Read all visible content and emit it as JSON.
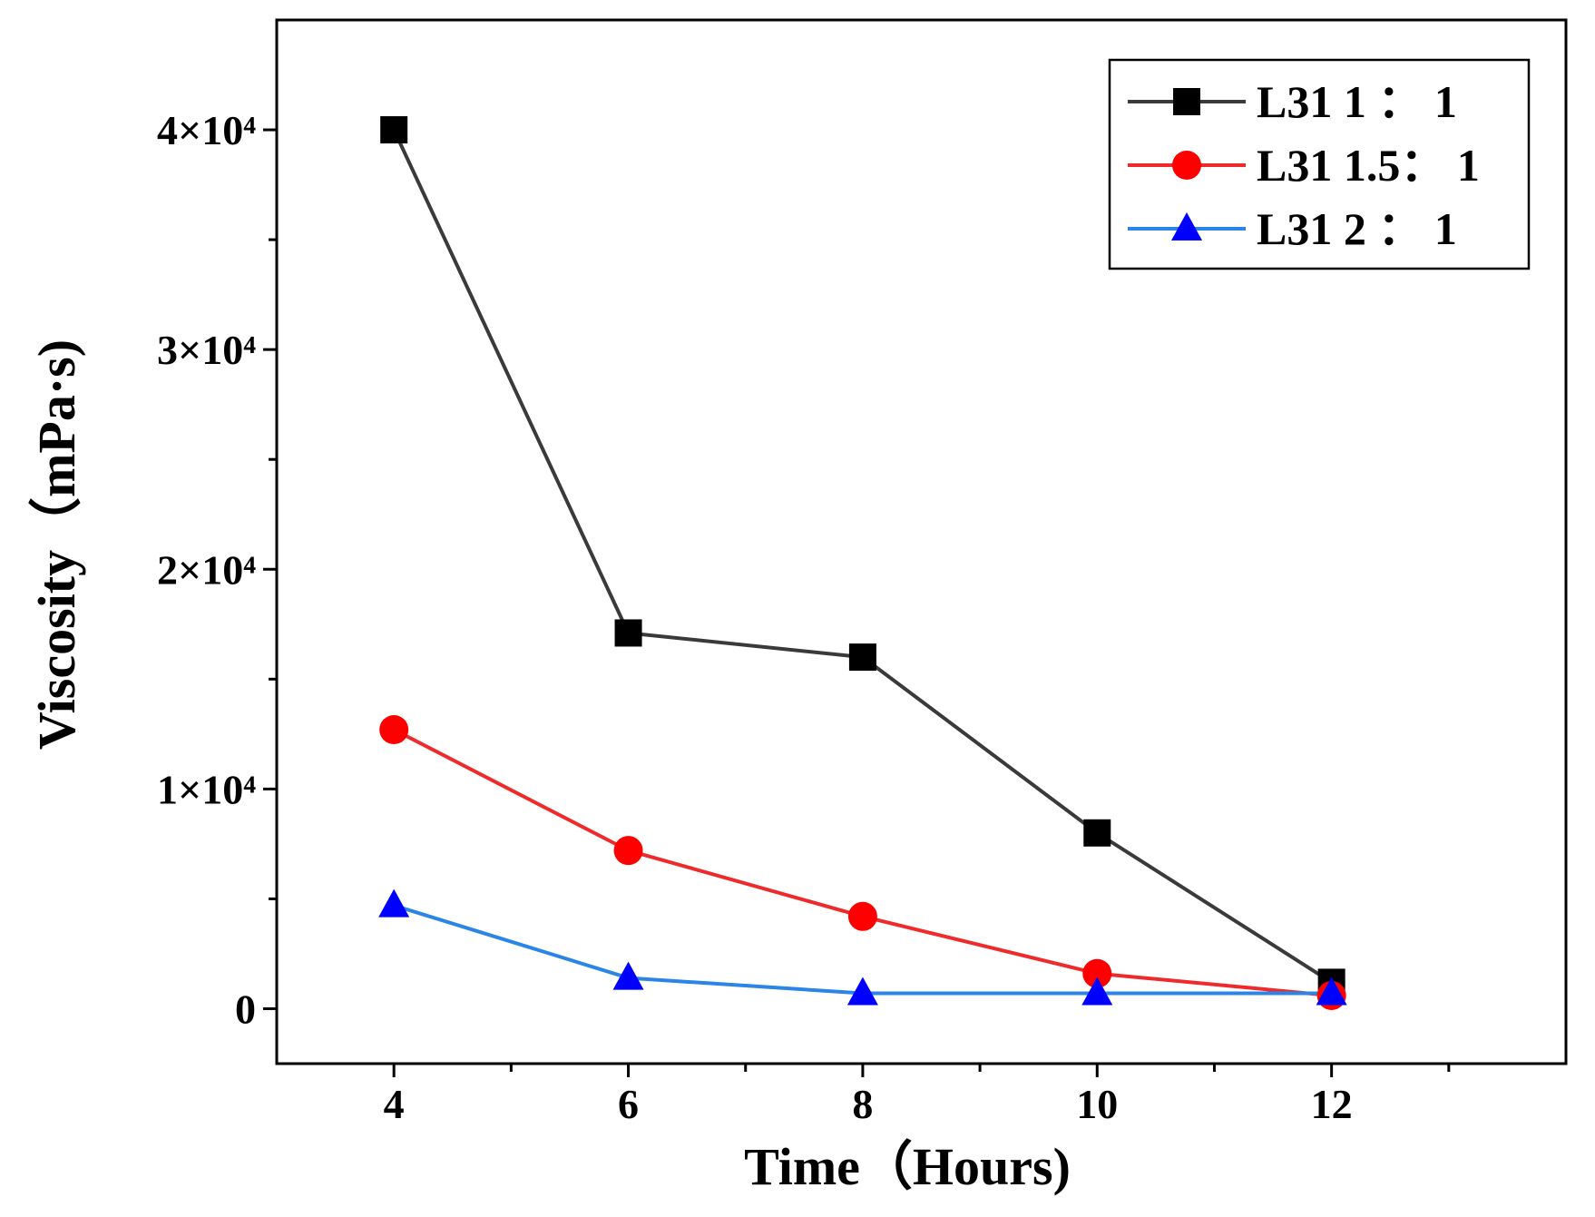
{
  "chart_data": {
    "type": "line",
    "title": "",
    "xlabel": "Time（Hours)",
    "ylabel": "Viscosity（mPa·s)",
    "x": [
      4,
      6,
      8,
      10,
      12
    ],
    "xlim": [
      3,
      14
    ],
    "ylim": [
      -2500,
      45000
    ],
    "x_ticks": [
      {
        "value": 4,
        "label": "4"
      },
      {
        "value": 6,
        "label": "6"
      },
      {
        "value": 8,
        "label": "8"
      },
      {
        "value": 10,
        "label": "10"
      },
      {
        "value": 12,
        "label": "12"
      }
    ],
    "y_ticks": [
      {
        "value": 0,
        "label": "0"
      },
      {
        "value": 10000,
        "label": "1×10⁴"
      },
      {
        "value": 20000,
        "label": "2×10⁴"
      },
      {
        "value": 30000,
        "label": "3×10⁴"
      },
      {
        "value": 40000,
        "label": "4×10⁴"
      }
    ],
    "legend_position": "top-right",
    "series": [
      {
        "name": "L31 1 ： 1",
        "color": "#000000",
        "line_color": "#3a3a3a",
        "marker": "square",
        "values": [
          40000,
          17100,
          16000,
          8000,
          1200
        ]
      },
      {
        "name": "L31 1.5： 1",
        "color": "#ff0000",
        "line_color": "#ee2a2a",
        "marker": "circle",
        "values": [
          12700,
          7200,
          4200,
          1600,
          600
        ]
      },
      {
        "name": "L31 2 ： 1",
        "color": "#0000ff",
        "line_color": "#2b85e6",
        "marker": "triangle",
        "values": [
          4700,
          1400,
          700,
          700,
          700
        ]
      }
    ]
  }
}
